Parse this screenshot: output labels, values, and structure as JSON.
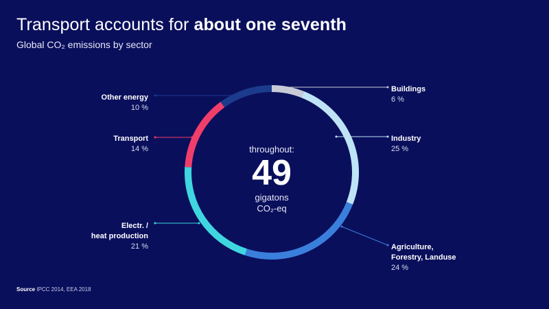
{
  "header": {
    "title_regular": "Transport accounts for ",
    "title_bold": "about one seventh",
    "subtitle": "Global CO₂ emissions by sector"
  },
  "center": {
    "caption": "throughout:",
    "value": "49",
    "unit_line1": "gigatons",
    "unit_line2": "CO₂-eq"
  },
  "source": {
    "label": "Source",
    "text": " IPCC 2014, EEA 2018"
  },
  "chart_data": {
    "type": "pie",
    "donut": true,
    "title": "Global CO₂ emissions by sector",
    "total": 49,
    "total_unit": "gigatons CO₂-eq",
    "slices": [
      {
        "label": "Buildings",
        "value": 6,
        "value_label": "6 %",
        "color": "#c8cbd6"
      },
      {
        "label": "Industry",
        "value": 25,
        "value_label": "25 %",
        "color": "#bfe3f6"
      },
      {
        "label": "Agriculture,\nForestry, Landuse",
        "value": 24,
        "value_label": "24 %",
        "color": "#3b7fdc"
      },
      {
        "label": "Electr. /\nheat production",
        "value": 21,
        "value_label": "21 %",
        "color": "#3fd6e0"
      },
      {
        "label": "Transport",
        "value": 14,
        "value_label": "14 %",
        "color": "#f03e6a"
      },
      {
        "label": "Other energy",
        "value": 10,
        "value_label": "10 %",
        "color": "#1c3b8c"
      }
    ]
  }
}
